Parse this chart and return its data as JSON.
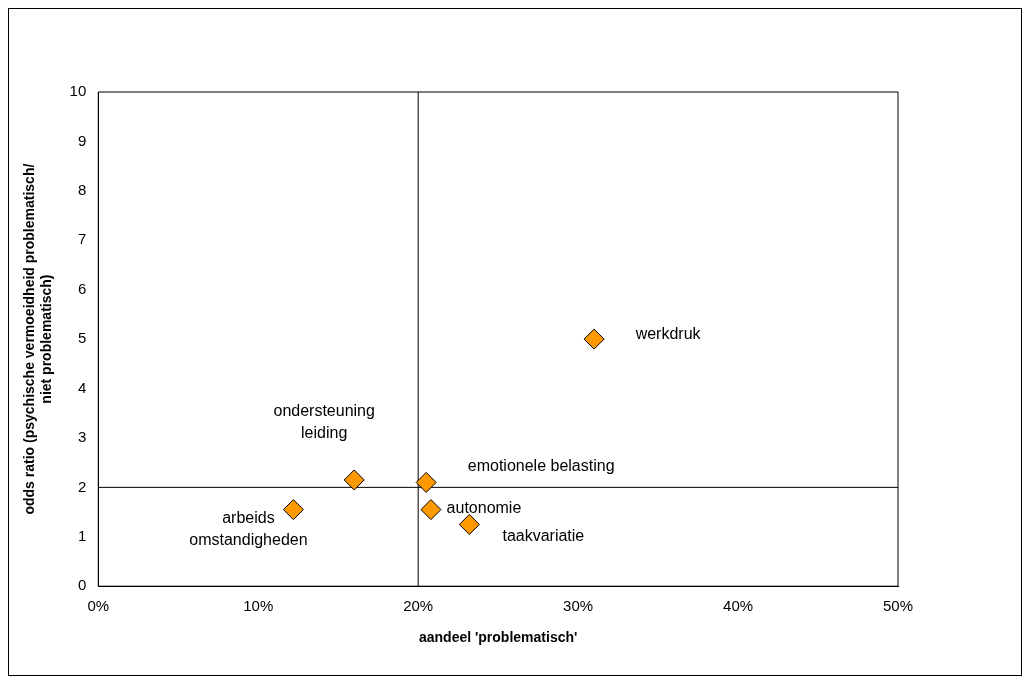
{
  "chart_data": {
    "type": "scatter",
    "xlabel": "aandeel 'problematisch'",
    "ylabel": "odds ratio (psychische vermoeidheid problematisch/\nniet problematisch)",
    "x": [
      31,
      16,
      20.5,
      12.2,
      20.8,
      23.2
    ],
    "series": [
      {
        "color": "#ff9900",
        "values": [
          5.0,
          2.15,
          2.1,
          1.55,
          1.55,
          1.25
        ]
      }
    ],
    "xlim": [
      0,
      50
    ],
    "xticks": [
      {
        "value": 0,
        "label": "0%"
      },
      {
        "value": 10,
        "label": "10%"
      },
      {
        "value": 20,
        "label": "20%"
      },
      {
        "value": 30,
        "label": "30%"
      },
      {
        "value": 40,
        "label": "40%"
      },
      {
        "value": 50,
        "label": "50%"
      }
    ],
    "ylim": [
      0,
      10
    ],
    "yticks": [
      0,
      1,
      2,
      3,
      4,
      5,
      6,
      7,
      8,
      9,
      10
    ],
    "ref_lines": [
      {
        "axis": "x",
        "value": 20
      },
      {
        "axis": "y",
        "value": 2
      }
    ],
    "annotations": [
      {
        "text": "werkdruk",
        "x": 31,
        "y": 5.0
      },
      {
        "text": "ondersteuning\nleiding",
        "x": 16,
        "y": 2.15
      },
      {
        "text": "emotionele belasting",
        "x": 20.5,
        "y": 2.1
      },
      {
        "text": "arbeids\nomstandigheden",
        "x": 12.2,
        "y": 1.55
      },
      {
        "text": "autonomie",
        "x": 20.8,
        "y": 1.55
      },
      {
        "text": "taakvariatie",
        "x": 23.2,
        "y": 1.25
      }
    ],
    "grid": false,
    "legend": false,
    "marker": "diamond"
  }
}
